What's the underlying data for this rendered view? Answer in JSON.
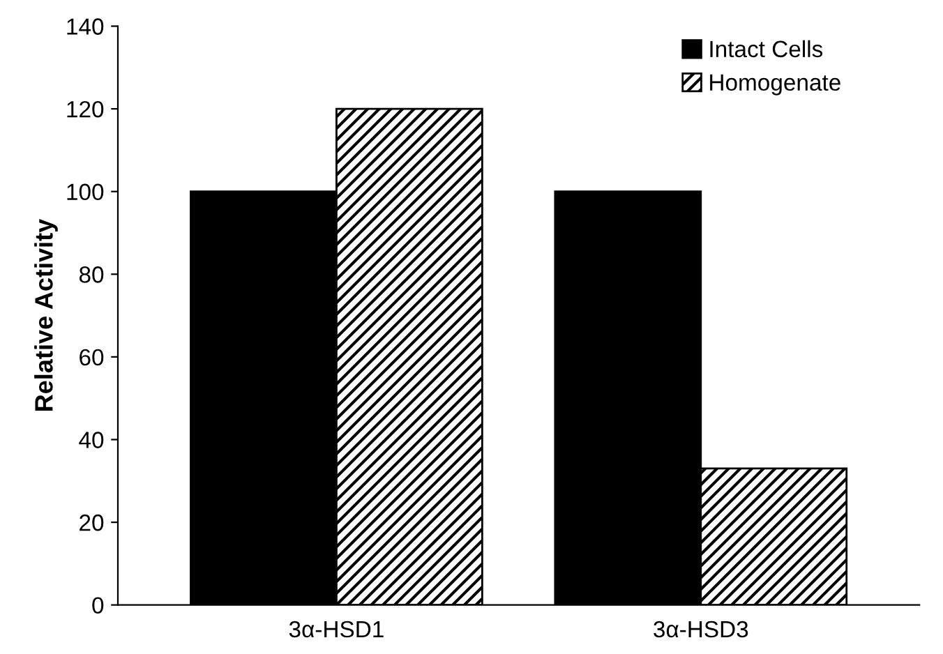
{
  "chart_data": {
    "type": "bar",
    "ylabel": "Relative Activity",
    "categories": [
      "3α-HSD1",
      "3α-HSD3"
    ],
    "series": [
      {
        "name": "Intact Cells",
        "color": "#000000",
        "values": [
          100,
          100
        ]
      },
      {
        "name": "Homogenate",
        "color": "#000000",
        "values": [
          120,
          33
        ]
      }
    ],
    "ylim": [
      0,
      140
    ],
    "yticks": [
      0,
      20,
      40,
      60,
      80,
      100,
      120,
      140
    ],
    "grid": false,
    "legend": "top right"
  }
}
